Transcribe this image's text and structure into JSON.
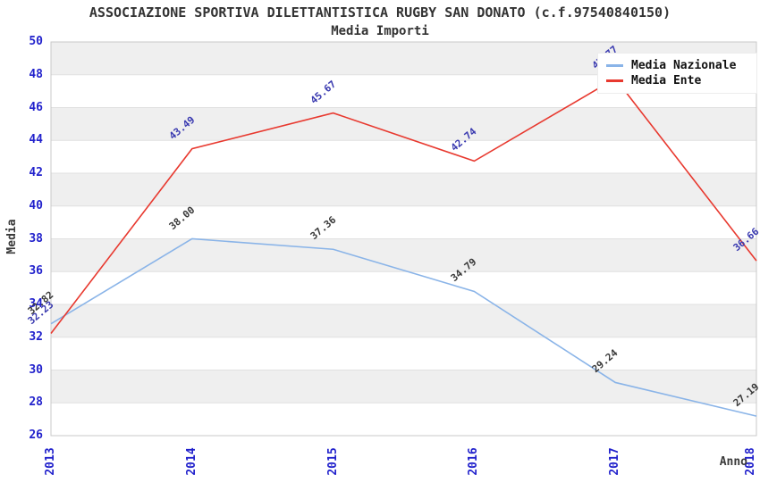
{
  "chart_data": {
    "type": "line",
    "title": "ASSOCIAZIONE SPORTIVA DILETTANTISTICA RUGBY SAN DONATO (c.f.97540840150)",
    "subtitle": "Media Importi",
    "x": [
      "2013",
      "2014",
      "2015",
      "2016",
      "2017",
      "2018"
    ],
    "xlabel": "Anno",
    "ylabel": "Media",
    "ylim": [
      26,
      50
    ],
    "ytick_step": 2,
    "grid": "horizontal-bands",
    "band_color": "#efefef",
    "gridline_color": "#e0e0e0",
    "plot_border_color": "#c9c9c9",
    "axis_tick_color": "#2222cc",
    "legend_position": "top-right",
    "series": [
      {
        "name": "Media Nazionale",
        "color": "#8ab4e8",
        "label_color": "#3a3a3a",
        "values": [
          32.82,
          38.0,
          37.36,
          34.79,
          29.24,
          27.19
        ],
        "point_labels": [
          "32.82",
          "38.00",
          "37.36",
          "34.79",
          "29.24",
          "27.19"
        ]
      },
      {
        "name": "Media Ente",
        "color": "#e8392f",
        "label_color": "#3a3ab0",
        "values": [
          32.23,
          43.49,
          45.67,
          42.74,
          47.77,
          36.66
        ],
        "point_labels": [
          "32.23",
          "43.49",
          "45.67",
          "42.74",
          "47.77",
          "36.66"
        ]
      }
    ]
  }
}
